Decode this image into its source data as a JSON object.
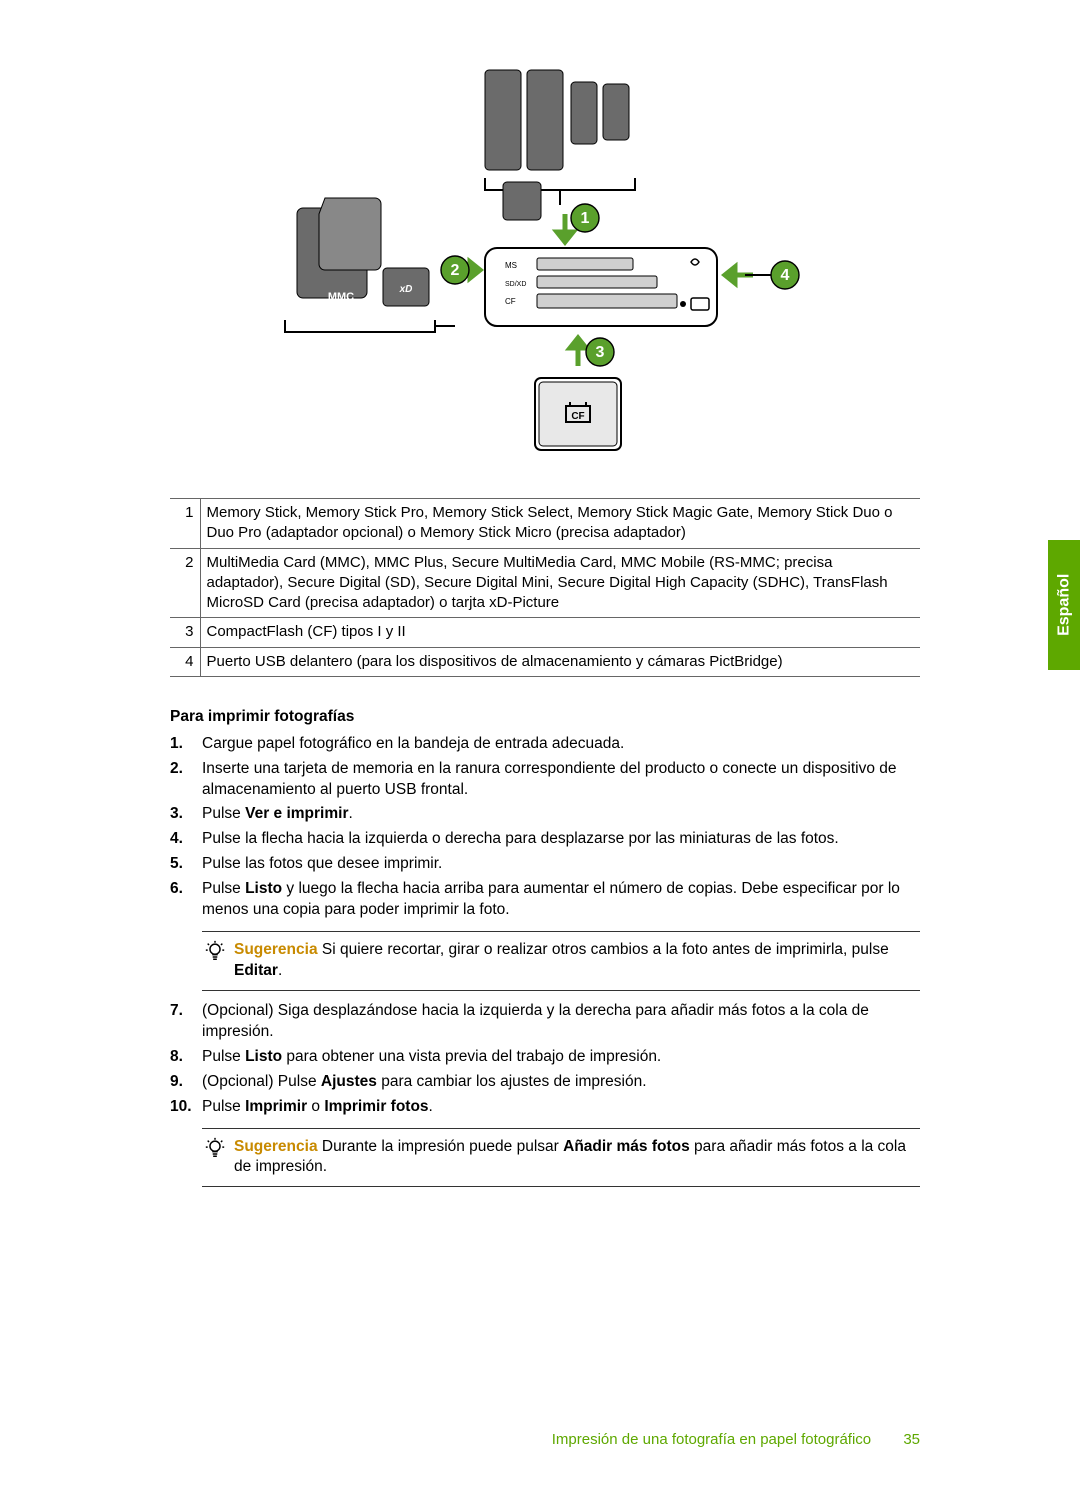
{
  "sideTab": "Español",
  "colors": {
    "accent_green": "#5ea800",
    "tip_orange": "#c88a00",
    "diagram_marker_fill": "#5aa02c",
    "diagram_stroke": "#000000",
    "diagram_shade": "#6b6b6b",
    "diagram_light": "#cfcfcf"
  },
  "diagram": {
    "type": "infographic",
    "markers": [
      {
        "id": 1,
        "label": "1"
      },
      {
        "id": 2,
        "label": "2"
      },
      {
        "id": 3,
        "label": "3"
      },
      {
        "id": 4,
        "label": "4"
      }
    ],
    "slot_labels": [
      "MS",
      "SD/XD",
      "CF"
    ],
    "card_labels": [
      "MMC",
      "xD"
    ]
  },
  "table": {
    "rows": [
      {
        "num": "1",
        "text": "Memory Stick, Memory Stick Pro, Memory Stick Select, Memory Stick Magic Gate, Memory Stick Duo o Duo Pro (adaptador opcional) o Memory Stick Micro (precisa adaptador)"
      },
      {
        "num": "2",
        "text": "MultiMedia Card (MMC), MMC Plus, Secure MultiMedia Card, MMC Mobile (RS-MMC; precisa adaptador), Secure Digital (SD), Secure Digital Mini, Secure Digital High Capacity (SDHC), TransFlash MicroSD Card (precisa adaptador) o tarjta xD-Picture"
      },
      {
        "num": "3",
        "text": "CompactFlash (CF) tipos I y II"
      },
      {
        "num": "4",
        "text": "Puerto USB delantero (para los dispositivos de almacenamiento y cámaras PictBridge)"
      }
    ]
  },
  "heading": "Para imprimir fotografías",
  "steps": [
    {
      "parts": [
        {
          "t": "Cargue papel fotográfico en la bandeja de entrada adecuada."
        }
      ]
    },
    {
      "parts": [
        {
          "t": "Inserte una tarjeta de memoria en la ranura correspondiente del producto o conecte un dispositivo de almacenamiento al puerto USB frontal."
        }
      ]
    },
    {
      "parts": [
        {
          "t": "Pulse "
        },
        {
          "t": "Ver e imprimir",
          "b": true
        },
        {
          "t": "."
        }
      ]
    },
    {
      "parts": [
        {
          "t": "Pulse la flecha hacia la izquierda o derecha para desplazarse por las miniaturas de las fotos."
        }
      ]
    },
    {
      "parts": [
        {
          "t": "Pulse las fotos que desee imprimir."
        }
      ]
    },
    {
      "parts": [
        {
          "t": "Pulse "
        },
        {
          "t": "Listo",
          "b": true
        },
        {
          "t": " y luego la flecha hacia arriba para aumentar el número de copias. Debe especificar por lo menos una copia para poder imprimir la foto."
        }
      ],
      "tip": {
        "label": "Sugerencia",
        "parts": [
          {
            "t": "   Si quiere recortar, girar o realizar otros cambios a la foto antes de imprimirla, pulse "
          },
          {
            "t": "Editar",
            "b": true
          },
          {
            "t": "."
          }
        ]
      }
    },
    {
      "parts": [
        {
          "t": "(Opcional) Siga desplazándose hacia la izquierda y la derecha para añadir más fotos a la cola de impresión."
        }
      ]
    },
    {
      "parts": [
        {
          "t": "Pulse "
        },
        {
          "t": "Listo",
          "b": true
        },
        {
          "t": " para obtener una vista previa del trabajo de impresión."
        }
      ]
    },
    {
      "parts": [
        {
          "t": "(Opcional) Pulse "
        },
        {
          "t": "Ajustes",
          "b": true
        },
        {
          "t": " para cambiar los ajustes de impresión."
        }
      ]
    },
    {
      "parts": [
        {
          "t": "Pulse "
        },
        {
          "t": "Imprimir",
          "b": true
        },
        {
          "t": " o "
        },
        {
          "t": "Imprimir fotos",
          "b": true
        },
        {
          "t": "."
        }
      ],
      "tip": {
        "label": "Sugerencia",
        "parts": [
          {
            "t": "   Durante la impresión puede pulsar "
          },
          {
            "t": "Añadir más fotos",
            "b": true
          },
          {
            "t": " para añadir más fotos a la cola de impresión."
          }
        ]
      }
    }
  ],
  "footer": {
    "title": "Impresión de una fotografía en papel fotográfico",
    "page": "35"
  }
}
